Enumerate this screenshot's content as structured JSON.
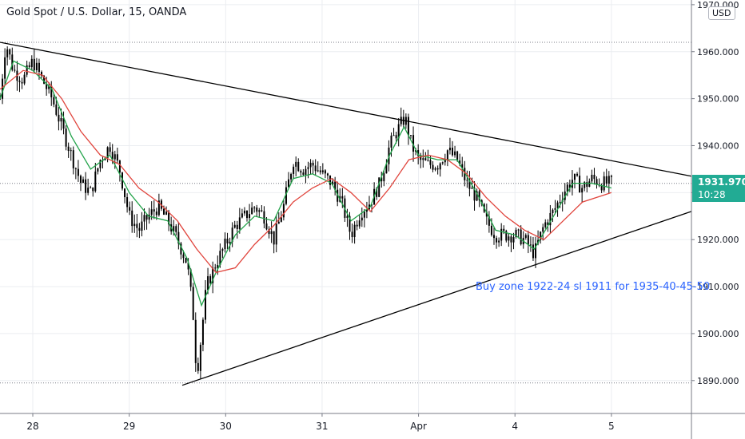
{
  "header": {
    "title": "Gold Spot / U.S. Dollar, 15, OANDA",
    "currency": "USD"
  },
  "price_tag": {
    "price": "1931.970",
    "countdown": "10:28"
  },
  "annotation": "Buy zone 1922-24 sl 1911 for 1935-40-45-50",
  "colors": {
    "candles": "#000000",
    "ma_fast": "#22a34a",
    "ma_slow": "#e0443c",
    "trendline": "#000000",
    "grid": "#ebedf1",
    "price_tag": "#22ab94",
    "annotation": "#2962ff"
  },
  "chart_data": {
    "type": "candlestick",
    "instrument": "Gold Spot / U.S. Dollar",
    "interval": "15",
    "source": "OANDA",
    "grid": true,
    "ylim": [
      1883,
      1971
    ],
    "yticks": [
      "1970.000",
      "1960.000",
      "1950.000",
      "1940.000",
      "1930.000",
      "1920.000",
      "1910.000",
      "1900.000",
      "1890.000"
    ],
    "x_ticks": [
      "28",
      "29",
      "30",
      "31",
      "Apr",
      "4",
      "5"
    ],
    "x_tick_positions": [
      28,
      29,
      30,
      31,
      32,
      33,
      34
    ],
    "xlim": [
      27.66,
      34.83
    ],
    "reference_lines": [
      1962.0,
      1931.97,
      1889.5
    ],
    "price_path": [
      [
        27.66,
        1950
      ],
      [
        27.72,
        1962
      ],
      [
        27.8,
        1956
      ],
      [
        27.9,
        1954
      ],
      [
        28.0,
        1958
      ],
      [
        28.1,
        1954
      ],
      [
        28.2,
        1950
      ],
      [
        28.3,
        1944
      ],
      [
        28.4,
        1938
      ],
      [
        28.5,
        1932
      ],
      [
        28.6,
        1930
      ],
      [
        28.7,
        1937
      ],
      [
        28.8,
        1940
      ],
      [
        28.9,
        1935
      ],
      [
        29.0,
        1925
      ],
      [
        29.1,
        1922
      ],
      [
        29.2,
        1925
      ],
      [
        29.3,
        1927
      ],
      [
        29.4,
        1924
      ],
      [
        29.5,
        1920
      ],
      [
        29.6,
        1915
      ],
      [
        29.66,
        1905
      ],
      [
        29.7,
        1891
      ],
      [
        29.75,
        1900
      ],
      [
        29.8,
        1910
      ],
      [
        29.9,
        1915
      ],
      [
        30.0,
        1919
      ],
      [
        30.1,
        1923
      ],
      [
        30.2,
        1925
      ],
      [
        30.3,
        1927
      ],
      [
        30.4,
        1925
      ],
      [
        30.5,
        1920
      ],
      [
        30.6,
        1927
      ],
      [
        30.7,
        1937
      ],
      [
        30.8,
        1935
      ],
      [
        30.9,
        1936
      ],
      [
        31.0,
        1934
      ],
      [
        31.1,
        1932
      ],
      [
        31.2,
        1928
      ],
      [
        31.3,
        1921
      ],
      [
        31.4,
        1926
      ],
      [
        31.5,
        1928
      ],
      [
        31.6,
        1932
      ],
      [
        31.7,
        1940
      ],
      [
        31.8,
        1944
      ],
      [
        31.86,
        1946
      ],
      [
        31.93,
        1940
      ],
      [
        32.0,
        1937
      ],
      [
        32.1,
        1936
      ],
      [
        32.2,
        1936
      ],
      [
        32.3,
        1939
      ],
      [
        32.4,
        1937
      ],
      [
        32.5,
        1932
      ],
      [
        32.6,
        1929
      ],
      [
        32.7,
        1924
      ],
      [
        32.8,
        1921
      ],
      [
        32.9,
        1921
      ],
      [
        33.0,
        1921
      ],
      [
        33.1,
        1920
      ],
      [
        33.2,
        1917
      ],
      [
        33.3,
        1923
      ],
      [
        33.4,
        1926
      ],
      [
        33.5,
        1930
      ],
      [
        33.6,
        1933
      ],
      [
        33.7,
        1931
      ],
      [
        33.8,
        1933
      ],
      [
        33.9,
        1932
      ],
      [
        34.0,
        1932
      ]
    ],
    "series": [
      {
        "type": "moving_average",
        "values": [
          [
            27.66,
            1950
          ],
          [
            27.8,
            1958
          ],
          [
            28.0,
            1956
          ],
          [
            28.2,
            1952
          ],
          [
            28.4,
            1942
          ],
          [
            28.6,
            1935
          ],
          [
            28.8,
            1938
          ],
          [
            29.0,
            1930
          ],
          [
            29.2,
            1925
          ],
          [
            29.4,
            1924
          ],
          [
            29.6,
            1916
          ],
          [
            29.75,
            1906
          ],
          [
            29.9,
            1913
          ],
          [
            30.1,
            1921
          ],
          [
            30.3,
            1925
          ],
          [
            30.5,
            1924
          ],
          [
            30.7,
            1933
          ],
          [
            30.9,
            1934
          ],
          [
            31.1,
            1932
          ],
          [
            31.3,
            1924
          ],
          [
            31.5,
            1927
          ],
          [
            31.7,
            1938
          ],
          [
            31.85,
            1944
          ],
          [
            32.0,
            1938
          ],
          [
            32.2,
            1937
          ],
          [
            32.4,
            1937
          ],
          [
            32.6,
            1930
          ],
          [
            32.8,
            1922
          ],
          [
            33.0,
            1921
          ],
          [
            33.2,
            1918
          ],
          [
            33.4,
            1925
          ],
          [
            33.6,
            1932
          ],
          [
            33.8,
            1932
          ],
          [
            34.0,
            1931
          ]
        ]
      },
      {
        "type": "moving_average",
        "values": [
          [
            27.66,
            1952
          ],
          [
            27.9,
            1956
          ],
          [
            28.1,
            1955
          ],
          [
            28.3,
            1950
          ],
          [
            28.5,
            1943
          ],
          [
            28.7,
            1938
          ],
          [
            28.9,
            1936
          ],
          [
            29.1,
            1931
          ],
          [
            29.3,
            1928
          ],
          [
            29.5,
            1924
          ],
          [
            29.7,
            1918
          ],
          [
            29.9,
            1913
          ],
          [
            30.1,
            1914
          ],
          [
            30.3,
            1919
          ],
          [
            30.5,
            1923
          ],
          [
            30.7,
            1928
          ],
          [
            30.9,
            1931
          ],
          [
            31.1,
            1933
          ],
          [
            31.3,
            1930
          ],
          [
            31.5,
            1926
          ],
          [
            31.7,
            1931
          ],
          [
            31.9,
            1937
          ],
          [
            32.1,
            1938
          ],
          [
            32.3,
            1937
          ],
          [
            32.5,
            1934
          ],
          [
            32.7,
            1929
          ],
          [
            32.9,
            1925
          ],
          [
            33.1,
            1922
          ],
          [
            33.3,
            1920
          ],
          [
            33.5,
            1924
          ],
          [
            33.7,
            1928
          ],
          [
            34.0,
            1930
          ]
        ]
      }
    ],
    "trendlines": [
      {
        "from": [
          27.66,
          1962.0
        ],
        "to": [
          34.83,
          1933.5
        ]
      },
      {
        "from": [
          29.55,
          1889.0
        ],
        "to": [
          34.83,
          1926.0
        ]
      }
    ]
  }
}
